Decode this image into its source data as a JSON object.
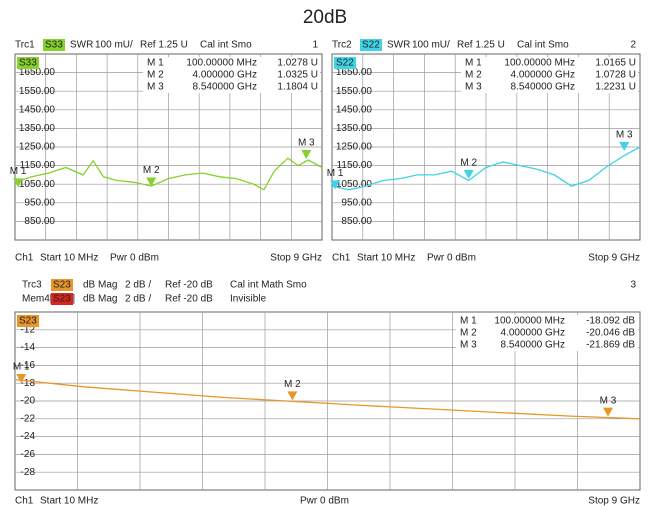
{
  "title": "20dB",
  "chart_data": [
    {
      "type": "line",
      "number": "1",
      "traces": [
        {
          "trace": "Trc1",
          "param": "S33",
          "color": "#86d12c",
          "format": "SWR",
          "scale": "100 mU/",
          "ref": "Ref 1.25 U",
          "status": "Cal int Smo"
        }
      ],
      "footer": {
        "channel": "Ch1",
        "start": "Start 10 MHz",
        "power": "Pwr 0 dBm",
        "stop": "Stop 9 GHz"
      },
      "xlim": [
        0.01,
        9
      ],
      "ylim": [
        750,
        1750
      ],
      "yticks": [
        {
          "value": 1650,
          "label": "1650.00"
        },
        {
          "value": 1550,
          "label": "1550.00"
        },
        {
          "value": 1450,
          "label": "1450.00"
        },
        {
          "value": 1350,
          "label": "1350.00"
        },
        {
          "value": 1250,
          "label": "1250.00"
        },
        {
          "value": 1150,
          "label": "1150.00"
        },
        {
          "value": 1050,
          "label": "1050.00"
        },
        {
          "value": 950,
          "label": "950.00"
        },
        {
          "value": 850,
          "label": "850.00"
        }
      ],
      "x": [
        0.01,
        0.5,
        1,
        1.5,
        2,
        2.3,
        2.6,
        3,
        3.5,
        4,
        4.5,
        5,
        5.5,
        6,
        6.5,
        7,
        7.3,
        7.6,
        8,
        8.3,
        8.6,
        9
      ],
      "series": [
        {
          "color": "#86d12c",
          "values": [
            1060,
            1090,
            1110,
            1140,
            1100,
            1175,
            1090,
            1070,
            1060,
            1040,
            1080,
            1100,
            1110,
            1090,
            1080,
            1050,
            1020,
            1120,
            1190,
            1150,
            1180,
            1140
          ]
        }
      ],
      "markers": [
        {
          "label": "M 1",
          "stimulus": "100.00000 MHz",
          "response": "1.0278 U",
          "x": 0.1,
          "y": 1027.8
        },
        {
          "label": "M 2",
          "stimulus": "4.000000 GHz",
          "response": "1.0325 U",
          "x": 4,
          "y": 1032.5
        },
        {
          "label": "M 3",
          "stimulus": "8.540000 GHz",
          "response": "1.1804 U",
          "x": 8.54,
          "y": 1180.4
        }
      ]
    },
    {
      "type": "line",
      "number": "2",
      "traces": [
        {
          "trace": "Trc2",
          "param": "S22",
          "color": "#3fd3e6",
          "format": "SWR",
          "scale": "100 mU/",
          "ref": "Ref 1.25 U",
          "status": "Cal int Smo"
        }
      ],
      "footer": {
        "channel": "Ch1",
        "start": "Start 10 MHz",
        "power": "Pwr 0 dBm",
        "stop": "Stop 9 GHz"
      },
      "xlim": [
        0.01,
        9
      ],
      "ylim": [
        750,
        1750
      ],
      "yticks": [
        {
          "value": 1650,
          "label": "1650.00"
        },
        {
          "value": 1550,
          "label": "1550.00"
        },
        {
          "value": 1450,
          "label": "1450.00"
        },
        {
          "value": 1350,
          "label": "1350.00"
        },
        {
          "value": 1250,
          "label": "1250.00"
        },
        {
          "value": 1150,
          "label": "1150.00"
        },
        {
          "value": 1050,
          "label": "1050.00"
        },
        {
          "value": 950,
          "label": "950.00"
        },
        {
          "value": 850,
          "label": "850.00"
        }
      ],
      "x": [
        0.01,
        0.5,
        1,
        1.5,
        2,
        2.5,
        3,
        3.5,
        4,
        4.5,
        5,
        5.5,
        6,
        6.5,
        7,
        7.5,
        8,
        8.5,
        9
      ],
      "series": [
        {
          "color": "#3fd3e6",
          "values": [
            1040,
            1020,
            1040,
            1070,
            1080,
            1100,
            1100,
            1120,
            1070,
            1140,
            1170,
            1150,
            1130,
            1100,
            1040,
            1070,
            1140,
            1200,
            1250
          ]
        }
      ],
      "markers": [
        {
          "label": "M 1",
          "stimulus": "100.00000 MHz",
          "response": "1.0165 U",
          "x": 0.1,
          "y": 1016.5
        },
        {
          "label": "M 2",
          "stimulus": "4.000000 GHz",
          "response": "1.0728 U",
          "x": 4,
          "y": 1072.8
        },
        {
          "label": "M 3",
          "stimulus": "8.540000 GHz",
          "response": "1.2231 U",
          "x": 8.54,
          "y": 1223.1
        }
      ]
    },
    {
      "type": "line",
      "number": "3",
      "traces": [
        {
          "trace": "Trc3",
          "param": "S23",
          "color": "#e8952a",
          "format": "dB Mag",
          "scale": "2 dB /",
          "ref": "Ref -20 dB",
          "status": "Cal int Math Smo"
        },
        {
          "trace": "Mem4[Trc3]",
          "param": "S23",
          "color": "#d8261e",
          "format": "dB Mag",
          "scale": "2 dB /",
          "ref": "Ref -20 dB",
          "status": "Invisible"
        }
      ],
      "footer": {
        "channel": "Ch1",
        "start": "Start 10 MHz",
        "power": "Pwr 0 dBm",
        "stop": "Stop 9 GHz"
      },
      "xlim": [
        0.01,
        9
      ],
      "ylim": [
        -30,
        -10
      ],
      "yticks": [
        -12,
        -14,
        -16,
        -18,
        -20,
        -22,
        -24,
        -26,
        -28
      ],
      "x": [
        0.01,
        1,
        2,
        3,
        4,
        5,
        6,
        7,
        8,
        9
      ],
      "series": [
        {
          "color": "#e8952a",
          "values": [
            -17.6,
            -18.4,
            -19.0,
            -19.6,
            -20.05,
            -20.5,
            -20.9,
            -21.3,
            -21.7,
            -22.0
          ]
        }
      ],
      "markers": [
        {
          "label": "M 1",
          "stimulus": "100.00000 MHz",
          "response": "-18.092 dB",
          "x": 0.1,
          "y": -18.092
        },
        {
          "label": "M 2",
          "stimulus": "4.000000 GHz",
          "response": "-20.046 dB",
          "x": 4,
          "y": -20.046
        },
        {
          "label": "M 3",
          "stimulus": "8.540000 GHz",
          "response": "-21.869 dB",
          "x": 8.54,
          "y": -21.869
        }
      ]
    }
  ]
}
